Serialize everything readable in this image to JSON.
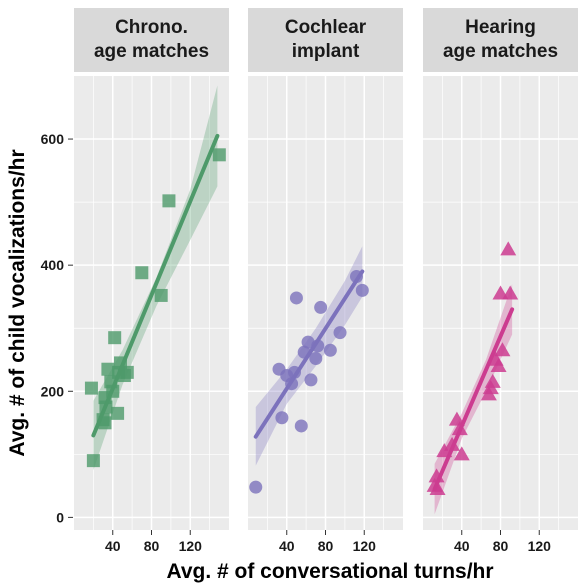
{
  "chart_data": {
    "type": "scatter",
    "xlabel": "Avg. # of conversational turns/hr",
    "ylabel": "Avg. # of child vocalizations/hr",
    "xlim": [
      0,
      160
    ],
    "ylim": [
      -20,
      700
    ],
    "x_ticks": [
      40,
      80,
      120
    ],
    "y_ticks": [
      0,
      200,
      400,
      600
    ],
    "x_tick_labels": [
      "40",
      "80",
      "120"
    ],
    "y_tick_labels": [
      "0",
      "200",
      "400",
      "600"
    ],
    "grid": true,
    "panel_background": "#ebebeb",
    "strip_background": "#d9d9d9",
    "panels": [
      {
        "strip_lines": [
          "Chrono.",
          "age matches"
        ],
        "marker": "square",
        "color": "#4e9a6a",
        "fit": {
          "x0": 20,
          "y0": 130,
          "x1": 148,
          "y1": 605
        },
        "ci_upper": [
          [
            20,
            185
          ],
          [
            50,
            265
          ],
          [
            85,
            380
          ],
          [
            120,
            520
          ],
          [
            148,
            685
          ]
        ],
        "ci_lower": [
          [
            20,
            75
          ],
          [
            50,
            210
          ],
          [
            85,
            335
          ],
          [
            120,
            440
          ],
          [
            148,
            525
          ]
        ],
        "points": [
          [
            18,
            205
          ],
          [
            20,
            90
          ],
          [
            30,
            155
          ],
          [
            32,
            150
          ],
          [
            32,
            190
          ],
          [
            33,
            175
          ],
          [
            35,
            235
          ],
          [
            38,
            215
          ],
          [
            40,
            200
          ],
          [
            42,
            285
          ],
          [
            45,
            165
          ],
          [
            46,
            230
          ],
          [
            48,
            245
          ],
          [
            52,
            225
          ],
          [
            55,
            230
          ],
          [
            70,
            388
          ],
          [
            90,
            352
          ],
          [
            98,
            502
          ],
          [
            150,
            575
          ]
        ]
      },
      {
        "strip_lines": [
          "Cochlear",
          "implant"
        ],
        "marker": "circle",
        "color": "#7c72bc",
        "fit": {
          "x0": 8,
          "y0": 128,
          "x1": 118,
          "y1": 390
        },
        "ci_upper": [
          [
            8,
            175
          ],
          [
            40,
            235
          ],
          [
            70,
            300
          ],
          [
            100,
            375
          ],
          [
            118,
            430
          ]
        ],
        "ci_lower": [
          [
            8,
            82
          ],
          [
            40,
            180
          ],
          [
            70,
            240
          ],
          [
            100,
            305
          ],
          [
            118,
            350
          ]
        ],
        "points": [
          [
            8,
            48
          ],
          [
            32,
            235
          ],
          [
            35,
            158
          ],
          [
            40,
            225
          ],
          [
            45,
            212
          ],
          [
            48,
            230
          ],
          [
            50,
            348
          ],
          [
            55,
            145
          ],
          [
            58,
            262
          ],
          [
            62,
            278
          ],
          [
            65,
            218
          ],
          [
            70,
            252
          ],
          [
            72,
            272
          ],
          [
            75,
            333
          ],
          [
            85,
            265
          ],
          [
            95,
            293
          ],
          [
            112,
            382
          ],
          [
            118,
            360
          ]
        ]
      },
      {
        "strip_lines": [
          "Hearing",
          "age matches"
        ],
        "marker": "triangle",
        "color": "#cc3c90",
        "fit": {
          "x0": 12,
          "y0": 45,
          "x1": 92,
          "y1": 330
        },
        "ci_upper": [
          [
            12,
            85
          ],
          [
            40,
            165
          ],
          [
            65,
            250
          ],
          [
            92,
            370
          ]
        ],
        "ci_lower": [
          [
            12,
            5
          ],
          [
            40,
            125
          ],
          [
            65,
            200
          ],
          [
            92,
            290
          ]
        ],
        "points": [
          [
            12,
            50
          ],
          [
            14,
            65
          ],
          [
            15,
            45
          ],
          [
            22,
            105
          ],
          [
            30,
            115
          ],
          [
            35,
            155
          ],
          [
            38,
            140
          ],
          [
            40,
            100
          ],
          [
            68,
            195
          ],
          [
            70,
            205
          ],
          [
            72,
            215
          ],
          [
            75,
            250
          ],
          [
            78,
            240
          ],
          [
            80,
            355
          ],
          [
            82,
            265
          ],
          [
            88,
            425
          ],
          [
            90,
            355
          ]
        ]
      }
    ]
  }
}
